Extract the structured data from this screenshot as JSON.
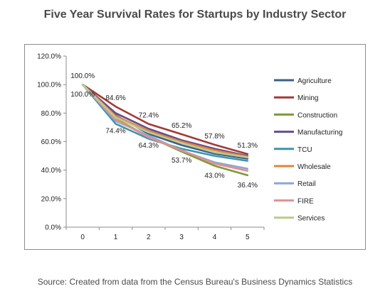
{
  "title": "Five Year Survival Rates for Startups by Industry Sector",
  "source": "Source: Created from data from the Census Bureau's Business Dynamics Statistics",
  "chart_data": {
    "type": "line",
    "title": "Five Year Survival Rates for Startups by Industry Sector",
    "x": [
      0,
      1,
      2,
      3,
      4,
      5
    ],
    "ylim": [
      0,
      120
    ],
    "yticks": [
      "0.0%",
      "20.0%",
      "40.0%",
      "60.0%",
      "80.0%",
      "100.0%",
      "120.0%"
    ],
    "xticks": [
      "0",
      "1",
      "2",
      "3",
      "4",
      "5"
    ],
    "grid": false,
    "legend_position": "right",
    "series": [
      {
        "name": "Agriculture",
        "color": "#3a5f8f",
        "values": [
          100,
          78.5,
          65.5,
          57.5,
          51.5,
          48.0
        ]
      },
      {
        "name": "Mining",
        "color": "#a33b36",
        "values": [
          100,
          84.6,
          72.4,
          65.2,
          57.8,
          51.3
        ]
      },
      {
        "name": "Construction",
        "color": "#7c9a37",
        "values": [
          100,
          76.0,
          63.5,
          53.0,
          43.0,
          36.4
        ]
      },
      {
        "name": "Manufacturing",
        "color": "#6a4b8c",
        "values": [
          100,
          80.0,
          69.0,
          61.0,
          55.0,
          50.0
        ]
      },
      {
        "name": "TCU",
        "color": "#3d94ad",
        "values": [
          100,
          72.5,
          62.0,
          55.0,
          50.0,
          46.5
        ]
      },
      {
        "name": "Wholesale",
        "color": "#e0843e",
        "values": [
          100,
          78.0,
          67.5,
          60.0,
          54.0,
          49.5
        ]
      },
      {
        "name": "Retail",
        "color": "#8ea6d2",
        "values": [
          100,
          74.4,
          64.3,
          53.7,
          45.5,
          41.0
        ]
      },
      {
        "name": "FIRE",
        "color": "#e19090",
        "values": [
          100,
          75.5,
          63.0,
          54.0,
          44.5,
          39.5
        ]
      },
      {
        "name": "Services",
        "color": "#b9cc8c",
        "values": [
          100,
          77.0,
          66.5,
          59.0,
          52.5,
          49.0
        ]
      }
    ],
    "data_labels": [
      {
        "text": "100.0%",
        "x": 0,
        "y": 100,
        "position": "above"
      },
      {
        "text": "84.6%",
        "x": 1,
        "y": 84.6,
        "position": "above"
      },
      {
        "text": "72.4%",
        "x": 2,
        "y": 72.4,
        "position": "above"
      },
      {
        "text": "65.2%",
        "x": 3,
        "y": 65.2,
        "position": "above"
      },
      {
        "text": "57.8%",
        "x": 4,
        "y": 57.8,
        "position": "above"
      },
      {
        "text": "51.3%",
        "x": 5,
        "y": 51.3,
        "position": "above"
      },
      {
        "text": "100.0%",
        "x": 0,
        "y": 100,
        "position": "below"
      },
      {
        "text": "74.4%",
        "x": 1,
        "y": 74.4,
        "position": "below"
      },
      {
        "text": "64.3%",
        "x": 2,
        "y": 64.3,
        "position": "below"
      },
      {
        "text": "53.7%",
        "x": 3,
        "y": 53.7,
        "position": "below"
      },
      {
        "text": "43.0%",
        "x": 4,
        "y": 43.0,
        "position": "below"
      },
      {
        "text": "36.4%",
        "x": 5,
        "y": 36.4,
        "position": "below"
      }
    ]
  }
}
